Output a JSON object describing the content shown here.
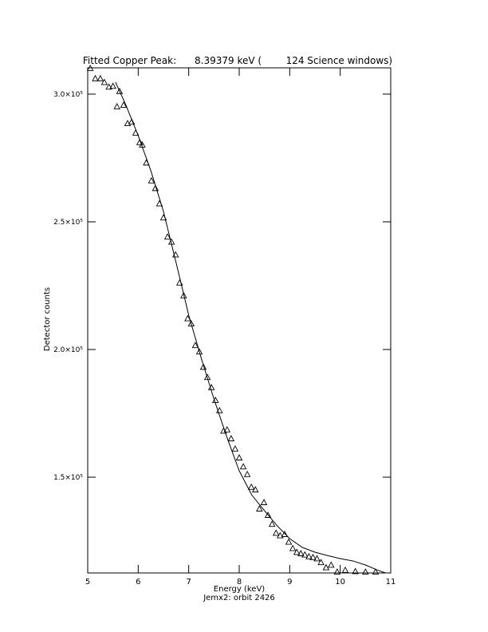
{
  "chart_data": {
    "type": "scatter",
    "title": "Fitted Copper Peak:      8.39379 keV (        124 Science windows)",
    "x_label": "Energy (keV)",
    "subtitle": "Jemx2: orbit 2426",
    "y_label": "Detector counts",
    "xlim": [
      5,
      11
    ],
    "xticks": [
      5,
      6,
      7,
      8,
      9,
      10,
      11
    ],
    "ylim": [
      112500,
      310300
    ],
    "yticks": [
      {
        "value": 150000,
        "label": "1.5×10⁵"
      },
      {
        "value": 200000,
        "label": "2.0×10⁵"
      },
      {
        "value": 250000,
        "label": "2.5×10⁵"
      },
      {
        "value": 300000,
        "label": "3.0×10⁵"
      }
    ],
    "color": "#000000",
    "series": [
      {
        "mode": "markers",
        "marker": "triangle",
        "x": [
          5.05,
          5.15,
          5.25,
          5.33,
          5.42,
          5.5,
          5.58,
          5.63,
          5.71,
          5.79,
          5.87,
          5.95,
          6.03,
          6.08,
          6.16,
          6.26,
          6.34,
          6.42,
          6.5,
          6.58,
          6.66,
          6.74,
          6.82,
          6.9,
          6.98,
          7.05,
          7.13,
          7.21,
          7.29,
          7.37,
          7.45,
          7.53,
          7.61,
          7.69,
          7.76,
          7.84,
          7.92,
          8.0,
          8.08,
          8.16,
          8.24,
          8.32,
          8.4,
          8.49,
          8.57,
          8.65,
          8.73,
          8.81,
          8.9,
          8.98,
          9.06,
          9.14,
          9.22,
          9.3,
          9.38,
          9.46,
          9.54,
          9.62,
          9.72,
          9.82,
          9.94,
          10.1,
          10.3,
          10.5,
          10.7
        ],
        "values": [
          310000,
          306000,
          306000,
          304500,
          302700,
          303000,
          295000,
          301000,
          295600,
          288400,
          289000,
          284700,
          281000,
          280000,
          273000,
          266000,
          263000,
          257000,
          251500,
          244000,
          242000,
          237000,
          226000,
          221000,
          212000,
          210000,
          201500,
          199000,
          193000,
          189000,
          185000,
          180000,
          176000,
          168000,
          168500,
          165000,
          161000,
          157500,
          154000,
          151000,
          146000,
          145000,
          137500,
          140000,
          135000,
          131500,
          128000,
          127000,
          127500,
          124500,
          122000,
          120500,
          120000,
          119500,
          118800,
          118500,
          118000,
          116500,
          114500,
          115500,
          112800,
          113500,
          113000,
          112800,
          112800
        ]
      },
      {
        "mode": "line",
        "x": [
          5.55,
          5.75,
          6.0,
          6.25,
          6.5,
          6.75,
          7.0,
          7.25,
          7.5,
          7.75,
          8.0,
          8.25,
          8.5,
          8.75,
          9.0,
          9.25,
          9.5,
          9.75,
          10.0,
          10.25,
          10.5,
          10.75,
          10.9
        ],
        "values": [
          304700,
          296000,
          283750,
          270000,
          254060,
          234000,
          213440,
          196500,
          180625,
          166000,
          152500,
          143000,
          136875,
          131000,
          125940,
          122500,
          120625,
          119300,
          118125,
          117200,
          115625,
          113500,
          112500
        ]
      }
    ]
  }
}
